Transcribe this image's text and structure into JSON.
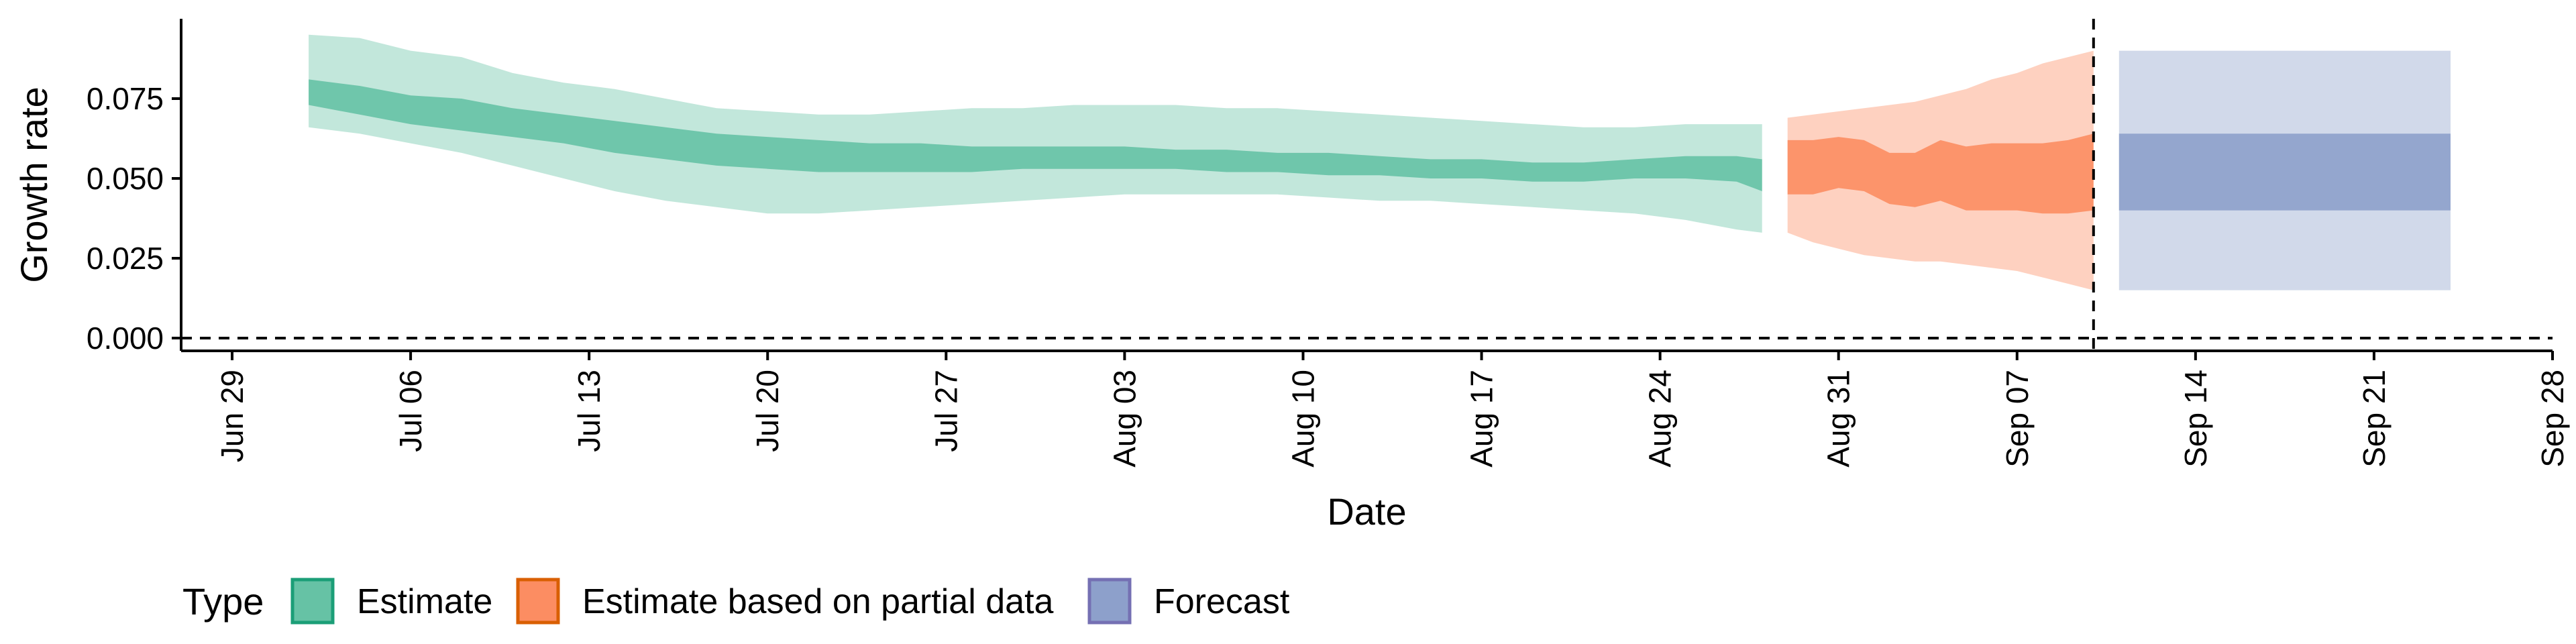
{
  "chart_data": {
    "type": "area",
    "xlabel": "Date",
    "ylabel": "Growth rate",
    "xlim": [
      "2021-06-27",
      "2021-09-28"
    ],
    "ylim": [
      -0.004,
      0.1
    ],
    "y_ticks": [
      0.0,
      0.025,
      0.05,
      0.075
    ],
    "y_tick_labels": [
      "0.000",
      "0.025",
      "0.050",
      "0.075"
    ],
    "x_ticks": [
      "2021-06-29",
      "2021-07-06",
      "2021-07-13",
      "2021-07-20",
      "2021-07-27",
      "2021-08-03",
      "2021-08-10",
      "2021-08-17",
      "2021-08-24",
      "2021-08-31",
      "2021-09-07",
      "2021-09-14",
      "2021-09-21",
      "2021-09-28"
    ],
    "x_tick_labels": [
      "Jun 29",
      "Jul 06",
      "Jul 13",
      "Jul 20",
      "Jul 27",
      "Aug 03",
      "Aug 10",
      "Aug 17",
      "Aug 24",
      "Aug 31",
      "Sep 07",
      "Sep 14",
      "Sep 21",
      "Sep 28"
    ],
    "reference_lines": {
      "horizontal_y": 0.0,
      "vertical_date": "2021-09-10"
    },
    "grid": false,
    "legend": {
      "title": "Type",
      "position": "bottom",
      "entries": [
        "Estimate",
        "Estimate based on partial data",
        "Forecast"
      ]
    },
    "colors": {
      "Estimate": {
        "fill": "#66c2a5",
        "border": "#1b9e77"
      },
      "Estimate based on partial data": {
        "fill": "#fc8d62",
        "border": "#d95f02"
      },
      "Forecast": {
        "fill": "#8da0cb",
        "border": "#7570b3"
      }
    },
    "series": [
      {
        "name": "Estimate",
        "x": [
          "2021-07-02",
          "2021-07-04",
          "2021-07-06",
          "2021-07-08",
          "2021-07-10",
          "2021-07-12",
          "2021-07-14",
          "2021-07-16",
          "2021-07-18",
          "2021-07-20",
          "2021-07-22",
          "2021-07-24",
          "2021-07-26",
          "2021-07-28",
          "2021-07-30",
          "2021-08-01",
          "2021-08-03",
          "2021-08-05",
          "2021-08-07",
          "2021-08-09",
          "2021-08-11",
          "2021-08-13",
          "2021-08-15",
          "2021-08-17",
          "2021-08-19",
          "2021-08-21",
          "2021-08-23",
          "2021-08-25",
          "2021-08-27",
          "2021-08-28"
        ],
        "median_upper": [
          0.081,
          0.079,
          0.076,
          0.075,
          0.072,
          0.07,
          0.068,
          0.066,
          0.064,
          0.063,
          0.062,
          0.061,
          0.061,
          0.06,
          0.06,
          0.06,
          0.06,
          0.059,
          0.059,
          0.058,
          0.058,
          0.057,
          0.056,
          0.056,
          0.055,
          0.055,
          0.056,
          0.057,
          0.057,
          0.056
        ],
        "median_lower": [
          0.073,
          0.07,
          0.067,
          0.065,
          0.063,
          0.061,
          0.058,
          0.056,
          0.054,
          0.053,
          0.052,
          0.052,
          0.052,
          0.052,
          0.053,
          0.053,
          0.053,
          0.053,
          0.052,
          0.052,
          0.051,
          0.051,
          0.05,
          0.05,
          0.049,
          0.049,
          0.05,
          0.05,
          0.049,
          0.046
        ],
        "outer_upper": [
          0.095,
          0.094,
          0.09,
          0.088,
          0.083,
          0.08,
          0.078,
          0.075,
          0.072,
          0.071,
          0.07,
          0.07,
          0.071,
          0.072,
          0.072,
          0.073,
          0.073,
          0.073,
          0.072,
          0.072,
          0.071,
          0.07,
          0.069,
          0.068,
          0.067,
          0.066,
          0.066,
          0.067,
          0.067,
          0.067
        ],
        "outer_lower": [
          0.066,
          0.064,
          0.061,
          0.058,
          0.054,
          0.05,
          0.046,
          0.043,
          0.041,
          0.039,
          0.039,
          0.04,
          0.041,
          0.042,
          0.043,
          0.044,
          0.045,
          0.045,
          0.045,
          0.045,
          0.044,
          0.043,
          0.043,
          0.042,
          0.041,
          0.04,
          0.039,
          0.037,
          0.034,
          0.033
        ]
      },
      {
        "name": "Estimate based on partial data",
        "x": [
          "2021-08-29",
          "2021-08-30",
          "2021-08-31",
          "2021-09-01",
          "2021-09-02",
          "2021-09-03",
          "2021-09-04",
          "2021-09-05",
          "2021-09-06",
          "2021-09-07",
          "2021-09-08",
          "2021-09-09",
          "2021-09-10"
        ],
        "median_upper": [
          0.062,
          0.062,
          0.063,
          0.062,
          0.058,
          0.058,
          0.062,
          0.06,
          0.061,
          0.061,
          0.061,
          0.062,
          0.064
        ],
        "median_lower": [
          0.045,
          0.045,
          0.047,
          0.046,
          0.042,
          0.041,
          0.043,
          0.04,
          0.04,
          0.04,
          0.039,
          0.039,
          0.04
        ],
        "outer_upper": [
          0.069,
          0.07,
          0.071,
          0.072,
          0.073,
          0.074,
          0.076,
          0.078,
          0.081,
          0.083,
          0.086,
          0.088,
          0.09
        ],
        "outer_lower": [
          0.033,
          0.03,
          0.028,
          0.026,
          0.025,
          0.024,
          0.024,
          0.023,
          0.022,
          0.021,
          0.019,
          0.017,
          0.015
        ]
      },
      {
        "name": "Forecast",
        "x": [
          "2021-09-11",
          "2021-09-24"
        ],
        "median_upper": [
          0.064,
          0.064
        ],
        "median_lower": [
          0.04,
          0.04
        ],
        "outer_upper": [
          0.09,
          0.09
        ],
        "outer_lower": [
          0.015,
          0.015
        ]
      }
    ]
  }
}
